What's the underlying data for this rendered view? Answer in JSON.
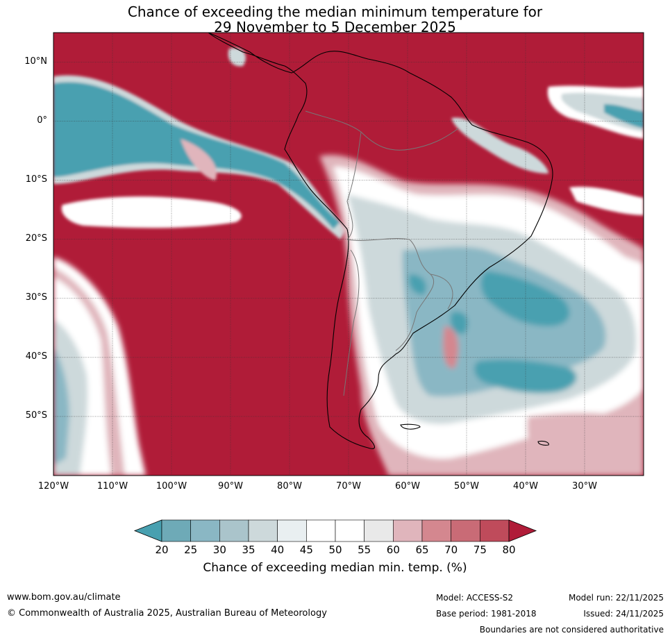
{
  "title_line1": "Chance of exceeding the median minimum temperature for",
  "title_line2": "29 November to 5 December 2025",
  "lat_labels": [
    {
      "lat": 10,
      "text": "10°N"
    },
    {
      "lat": 0,
      "text": "0°"
    },
    {
      "lat": -10,
      "text": "10°S"
    },
    {
      "lat": -20,
      "text": "20°S"
    },
    {
      "lat": -30,
      "text": "30°S"
    },
    {
      "lat": -40,
      "text": "40°S"
    },
    {
      "lat": -50,
      "text": "50°S"
    }
  ],
  "lon_labels": [
    {
      "lon": -120,
      "text": "120°W"
    },
    {
      "lon": -110,
      "text": "110°W"
    },
    {
      "lon": -100,
      "text": "100°W"
    },
    {
      "lon": -90,
      "text": "90°W"
    },
    {
      "lon": -80,
      "text": "80°W"
    },
    {
      "lon": -70,
      "text": "70°W"
    },
    {
      "lon": -60,
      "text": "60°W"
    },
    {
      "lon": -50,
      "text": "50°W"
    },
    {
      "lon": -40,
      "text": "40°W"
    },
    {
      "lon": -30,
      "text": "30°W"
    }
  ],
  "map_extent": {
    "lon_min": -120,
    "lon_max": -20,
    "lat_min": -60,
    "lat_max": 15
  },
  "colorbar": {
    "ticks": [
      "20",
      "25",
      "30",
      "35",
      "40",
      "45",
      "50",
      "55",
      "60",
      "65",
      "70",
      "75",
      "80"
    ],
    "label": "Chance of exceeding median min. temp. (%)",
    "low_color": "#48a0b0",
    "high_color": "#b01c38",
    "colors": [
      "#6eaab7",
      "#8ab7c4",
      "#aac4cb",
      "#cdd9db",
      "#e9eff1",
      "#ffffff",
      "#ffffff",
      "#e9e9e9",
      "#e0b5bc",
      "#d4878f",
      "#c96b76",
      "#bf4b5b"
    ]
  },
  "colors": {
    "above": "#b01c38",
    "below": "#48a0b0",
    "mid_blue": "#8ab7c4",
    "light_blue": "#cdd9db",
    "pink": "#e0b5bc",
    "rose": "#d4878f",
    "neutral": "#ffffff"
  },
  "footer": {
    "url": "www.bom.gov.au/climate",
    "copyright": "© Commonwealth of Australia 2025, Australian Bureau of Meteorology",
    "model": "Model: ACCESS-S2",
    "base_period": "Base period: 1981-2018",
    "model_run": "Model run: 22/11/2025",
    "issued": "Issued: 24/11/2025",
    "boundaries": "Boundaries are not considered authoritative"
  }
}
